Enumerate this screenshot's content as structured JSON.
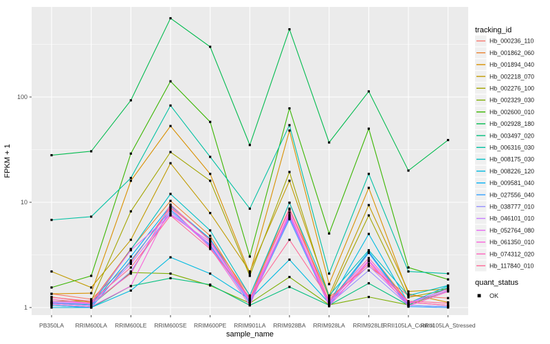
{
  "chart_data": {
    "type": "line",
    "title": "",
    "xlabel": "sample_name",
    "ylabel": "FPKM + 1",
    "x_categories": [
      "PB350LA",
      "RRIM600LA",
      "RRIM600LE",
      "RRIM600SE",
      "RRIM600PE",
      "RRIM901LA",
      "RRIM928BA",
      "RRIM928LA",
      "RRIM928LE",
      "RRII105LA_Control",
      "RRII105LA_Stressed"
    ],
    "y_scale": "log10",
    "y_major_ticks": [
      1,
      10,
      100
    ],
    "y_tick_labels": [
      "1",
      "10",
      "100"
    ],
    "y_minor_ticks": [
      3.162,
      31.62,
      316.2
    ],
    "ylim": [
      0.85,
      750
    ],
    "grid": true,
    "legend_position": "right",
    "legend_title": "tracking_id",
    "point_shape": "filled-square",
    "point_color": "#000000",
    "quant_legend": {
      "title": "quant_status",
      "items": [
        {
          "label": "OK",
          "shape": "filled-square",
          "color": "#000000"
        }
      ]
    },
    "series": [
      {
        "name": "Hb_000236_110",
        "color": "#F8766D",
        "values": [
          1.35,
          1.2,
          2.7,
          9.0,
          4.45,
          1.3,
          8.7,
          1.25,
          2.47,
          1.3,
          1.23
        ]
      },
      {
        "name": "Hb_001862_060",
        "color": "#EA8331",
        "values": [
          1.26,
          1.12,
          3.6,
          10.3,
          4.8,
          1.2,
          9.9,
          1.12,
          3.35,
          1.12,
          1.05
        ]
      },
      {
        "name": "Hb_001894_040",
        "color": "#D89000",
        "values": [
          1.35,
          1.37,
          16,
          53,
          18.6,
          2.1,
          48,
          1.67,
          13.7,
          1.35,
          1.12
        ]
      },
      {
        "name": "Hb_002218_070",
        "color": "#C09B00",
        "values": [
          2.2,
          1.55,
          4.4,
          23.5,
          7.9,
          2.2,
          16,
          1.3,
          9.4,
          1.42,
          1.5
        ]
      },
      {
        "name": "Hb_002276_100",
        "color": "#A3A500",
        "values": [
          1.15,
          1.15,
          8.2,
          30,
          16,
          2.0,
          19.4,
          1.22,
          7.5,
          1.25,
          1.48
        ]
      },
      {
        "name": "Hb_002329_030",
        "color": "#7CAE00",
        "values": [
          1.1,
          1.05,
          2.15,
          2.1,
          1.62,
          1.1,
          1.95,
          1.06,
          1.26,
          1.06,
          1.45
        ]
      },
      {
        "name": "Hb_002600_010",
        "color": "#39B600",
        "values": [
          1.55,
          2.0,
          29,
          141,
          58,
          3.05,
          78,
          5.05,
          50,
          2.4,
          1.85
        ]
      },
      {
        "name": "Hb_002928_180",
        "color": "#00BB4E",
        "values": [
          28,
          30.5,
          93,
          560,
          300,
          35,
          440,
          37,
          113,
          20,
          39
        ]
      },
      {
        "name": "Hb_003497_020",
        "color": "#00BF7D",
        "values": [
          1.05,
          1.0,
          1.6,
          1.9,
          1.65,
          1.05,
          1.57,
          1.05,
          1.7,
          1.05,
          1.55
        ]
      },
      {
        "name": "Hb_006316_030",
        "color": "#00C1A3",
        "values": [
          6.8,
          7.3,
          17,
          83,
          27,
          8.7,
          54,
          2.1,
          18.6,
          2.2,
          2.1
        ]
      },
      {
        "name": "Hb_008175_030",
        "color": "#00BFC4",
        "values": [
          1.12,
          1.06,
          3.55,
          12,
          5.4,
          1.3,
          9.9,
          1.3,
          3.5,
          1.3,
          1.62
        ]
      },
      {
        "name": "Hb_008226_120",
        "color": "#00BAE0",
        "values": [
          1.0,
          1.0,
          1.45,
          3.0,
          2.1,
          1.2,
          2.85,
          1.1,
          5.0,
          1.1,
          1.6
        ]
      },
      {
        "name": "Hb_009581_040",
        "color": "#00B0F6",
        "values": [
          1.1,
          1.05,
          3.05,
          9.3,
          4.5,
          1.15,
          7.2,
          1.1,
          3.4,
          1.05,
          1.02
        ]
      },
      {
        "name": "Hb_027556_040",
        "color": "#35A2FF",
        "values": [
          1.05,
          1.0,
          2.8,
          8.5,
          3.9,
          1.1,
          6.9,
          1.05,
          3.3,
          1.02,
          1.0
        ]
      },
      {
        "name": "Hb_038777_010",
        "color": "#9590FF",
        "values": [
          1.1,
          1.05,
          2.2,
          8.2,
          3.8,
          1.12,
          7.0,
          1.08,
          2.25,
          1.05,
          1.02
        ]
      },
      {
        "name": "Hb_046101_010",
        "color": "#C77CFF",
        "values": [
          1.12,
          1.08,
          2.6,
          7.8,
          4.0,
          1.15,
          7.4,
          1.1,
          2.5,
          1.08,
          1.45
        ]
      },
      {
        "name": "Hb_052764_080",
        "color": "#E76BF3",
        "values": [
          1.15,
          1.1,
          3.5,
          7.6,
          4.2,
          1.18,
          7.6,
          1.12,
          2.8,
          1.1,
          1.5
        ]
      },
      {
        "name": "Hb_061350_010",
        "color": "#FA62DB",
        "values": [
          1.08,
          1.02,
          1.6,
          8.9,
          3.7,
          1.05,
          8.0,
          1.03,
          2.75,
          1.03,
          1.42
        ]
      },
      {
        "name": "Hb_074312_020",
        "color": "#FF62BC",
        "values": [
          1.2,
          1.1,
          2.1,
          9.5,
          4.3,
          1.2,
          8.5,
          1.15,
          2.95,
          1.12,
          1.05
        ]
      },
      {
        "name": "Hb_117840_010",
        "color": "#FF6A98",
        "values": [
          1.25,
          1.15,
          2.4,
          7.5,
          3.6,
          1.25,
          4.4,
          1.2,
          2.6,
          1.15,
          1.1
        ]
      }
    ]
  },
  "colors": {
    "figure_bg": "#FFFFFF",
    "panel_bg": "#EBEBEB",
    "grid": "#FFFFFF",
    "legend_key_bg": "#F0F0F0",
    "tick_text": "#4D4D4D",
    "axis_text": "#000000",
    "legend_text": "#1A1A1A",
    "tick_mark": "#333333"
  }
}
